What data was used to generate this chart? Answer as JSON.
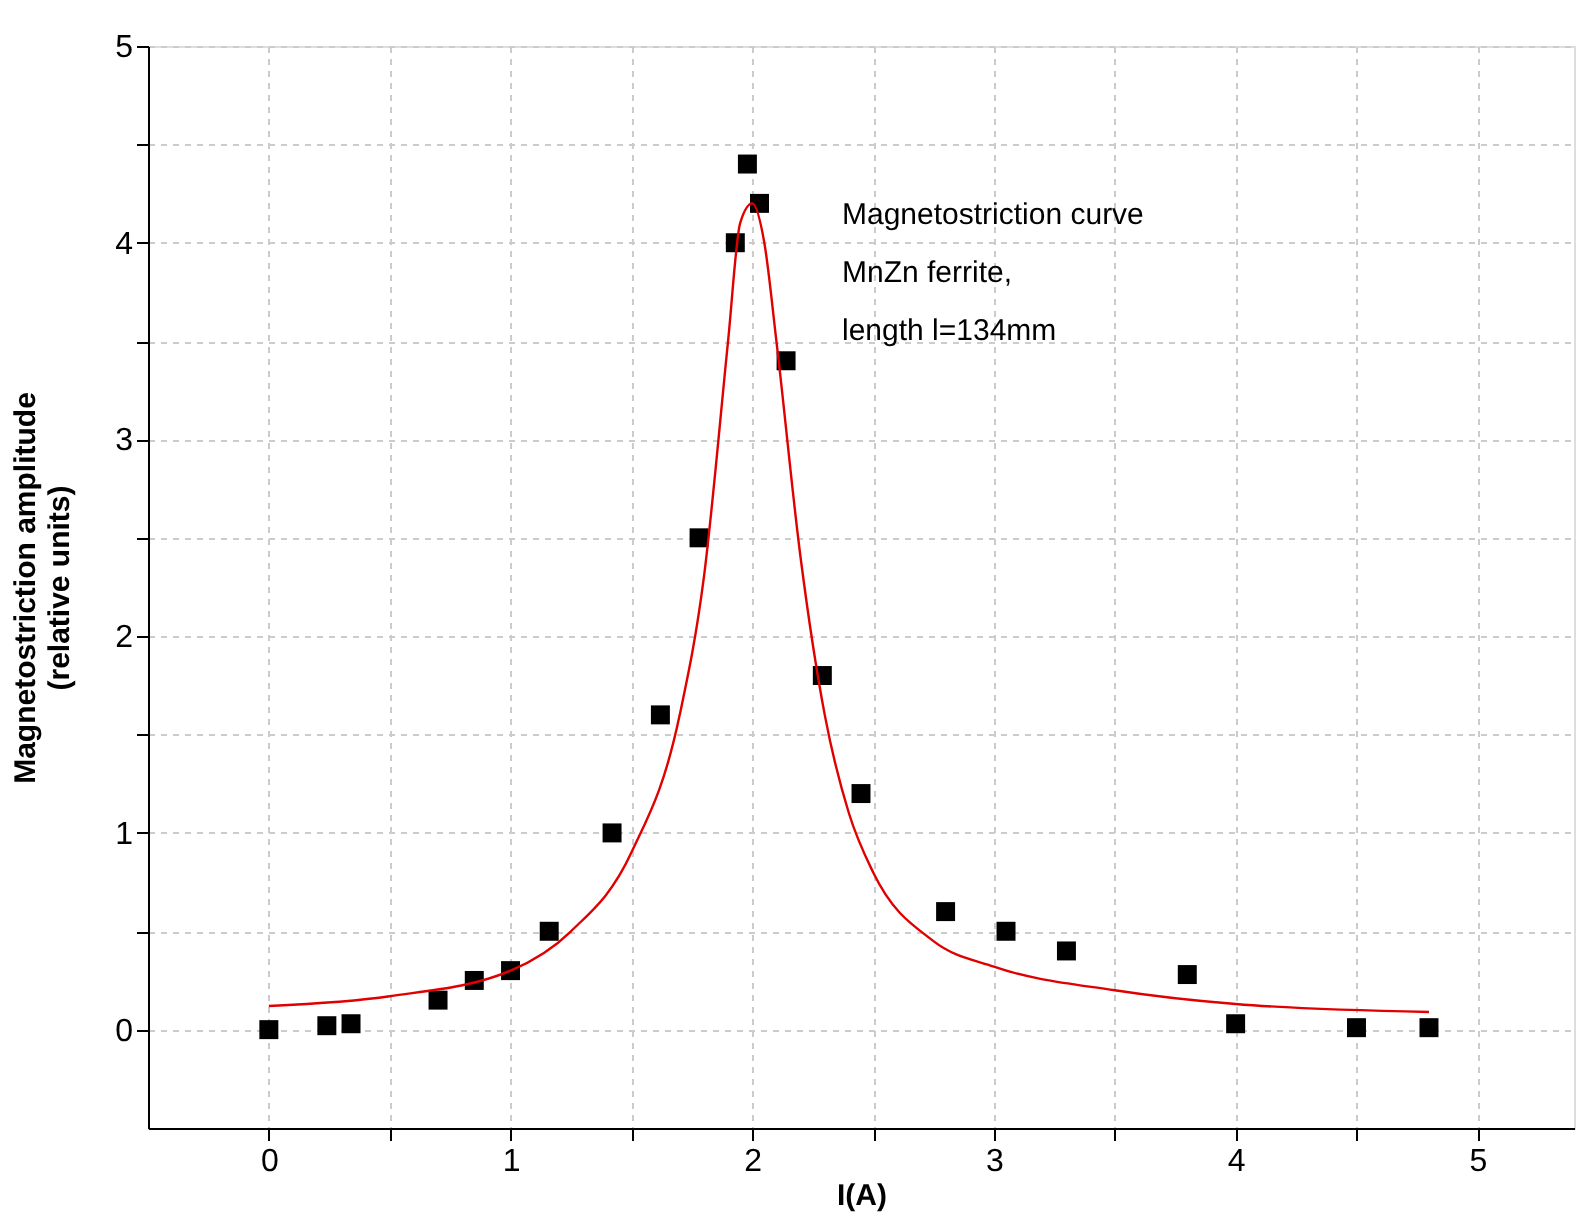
{
  "chart_data": {
    "type": "scatter",
    "xlabel": "I(A)",
    "ylabel": "Magnetostriction amplitude\n(relative units)",
    "xlim": [
      -0.5,
      5.4
    ],
    "ylim": [
      -0.5,
      5
    ],
    "xticks": [
      0,
      {
        "value": 0.5,
        "label": null
      },
      1,
      {
        "value": 1.5,
        "label": null
      },
      2,
      {
        "value": 2.5,
        "label": null
      },
      3,
      {
        "value": 3.5,
        "label": null
      },
      4,
      {
        "value": 4.5,
        "label": null
      },
      5
    ],
    "yticks": [
      0,
      {
        "value": 0.5,
        "label": null
      },
      1,
      {
        "value": 1.5,
        "label": null
      },
      2,
      {
        "value": 2.5,
        "label": null
      },
      3,
      {
        "value": 3.5,
        "label": null
      },
      4,
      {
        "value": 4.5,
        "label": null
      },
      5
    ],
    "grid": true,
    "marker": "square",
    "annotations": [
      "Magnetostriction curve",
      " MnZn ferrite,",
      " length l=134mm"
    ],
    "series": [
      {
        "color": "#000000",
        "x": [
          0,
          0.24,
          0.34,
          0.7,
          0.85,
          1.0,
          1.16,
          1.42,
          1.62,
          1.78,
          1.93,
          1.98,
          2.03,
          2.14,
          2.29,
          2.45,
          2.8,
          3.05,
          3.3,
          3.8,
          4.0,
          4.5,
          4.8
        ],
        "values": [
          0,
          0.02,
          0.03,
          0.15,
          0.25,
          0.3,
          0.5,
          1.0,
          1.6,
          2.5,
          4.0,
          4.4,
          4.2,
          3.4,
          1.8,
          1.2,
          0.6,
          0.5,
          0.4,
          0.28,
          0.03,
          0.01,
          0.01
        ]
      },
      {
        "type": "line",
        "color": "#e00000",
        "marker": "none",
        "x": [
          0,
          0.5,
          1,
          1.25,
          1.5,
          1.7,
          1.8,
          1.9,
          1.95,
          2.0,
          2.05,
          2.1,
          2.2,
          2.3,
          2.4,
          2.5,
          2.75,
          3.0,
          3.5,
          4.0,
          4.8
        ],
        "values": [
          0.12,
          0.17,
          0.3,
          0.5,
          0.9,
          1.6,
          2.3,
          3.5,
          4.1,
          4.2,
          4.0,
          3.5,
          2.4,
          1.6,
          1.1,
          0.8,
          0.45,
          0.32,
          0.2,
          0.13,
          0.09
        ]
      }
    ]
  }
}
